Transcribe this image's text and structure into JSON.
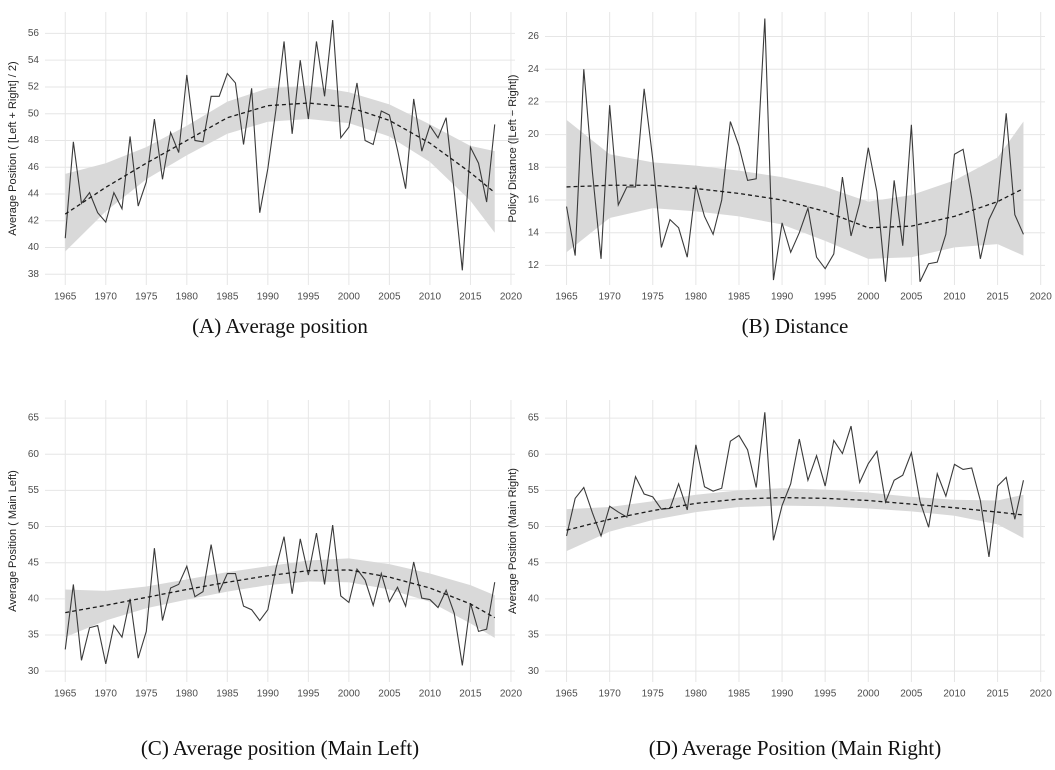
{
  "chart_data": [
    {
      "type": "line",
      "ylabel": "Average Position ( [Left + Right] / 2)",
      "caption": "(A) Average position",
      "x": [
        1965,
        1966,
        1967,
        1968,
        1969,
        1970,
        1971,
        1972,
        1973,
        1974,
        1975,
        1976,
        1977,
        1978,
        1979,
        1980,
        1981,
        1982,
        1983,
        1984,
        1985,
        1986,
        1987,
        1988,
        1989,
        1990,
        1991,
        1992,
        1993,
        1994,
        1995,
        1996,
        1997,
        1998,
        1999,
        2000,
        2001,
        2002,
        2003,
        2004,
        2005,
        2006,
        2007,
        2008,
        2009,
        2010,
        2011,
        2012,
        2013,
        2014,
        2015,
        2016,
        2017,
        2018
      ],
      "xlim": [
        1962.5,
        2020.5
      ],
      "xticks": [
        1965,
        1970,
        1975,
        1980,
        1985,
        1990,
        1995,
        2000,
        2005,
        2010,
        2015,
        2020
      ],
      "ylim": [
        37.2,
        57.6
      ],
      "yticks": [
        38,
        40,
        42,
        44,
        46,
        48,
        50,
        52,
        54,
        56
      ],
      "grid": true,
      "series": [
        {
          "color": "#3a3a3a",
          "values": [
            40.7,
            47.9,
            43.3,
            44.1,
            42.6,
            41.9,
            44.1,
            42.9,
            48.3,
            43.1,
            44.9,
            49.6,
            45.1,
            48.6,
            47.1,
            52.9,
            48.0,
            47.9,
            51.3,
            51.3,
            53.0,
            52.3,
            47.7,
            51.9,
            42.6,
            45.9,
            50.3,
            55.4,
            48.5,
            54.0,
            49.6,
            55.4,
            51.3,
            57.0,
            48.2,
            49.0,
            52.3,
            48.0,
            47.7,
            50.2,
            49.9,
            47.3,
            44.4,
            51.1,
            47.2,
            49.1,
            48.2,
            49.7,
            44.2,
            38.3,
            47.5,
            46.3,
            43.4,
            49.2
          ]
        }
      ],
      "smooth": {
        "x": [
          1965,
          1970,
          1975,
          1980,
          1985,
          1990,
          1995,
          2000,
          2005,
          2010,
          2015,
          2018
        ],
        "fit": [
          42.5,
          44.5,
          46.3,
          48.0,
          49.7,
          50.6,
          50.8,
          50.5,
          49.5,
          47.8,
          45.6,
          44.1
        ],
        "lower": [
          39.7,
          42.7,
          45.1,
          46.9,
          48.5,
          49.4,
          49.6,
          49.3,
          48.3,
          46.4,
          43.5,
          41.1
        ],
        "upper": [
          45.5,
          46.3,
          47.5,
          49.1,
          50.9,
          51.9,
          52.1,
          51.6,
          50.7,
          49.2,
          47.6,
          47.2
        ],
        "color": "#1a1a1a",
        "band_color": "#d9d9d9"
      }
    },
    {
      "type": "line",
      "ylabel": "Policy Distance (|Left − Right|)",
      "caption": "(B) Distance",
      "x": [
        1965,
        1966,
        1967,
        1968,
        1969,
        1970,
        1971,
        1972,
        1973,
        1974,
        1975,
        1976,
        1977,
        1978,
        1979,
        1980,
        1981,
        1982,
        1983,
        1984,
        1985,
        1986,
        1987,
        1988,
        1989,
        1990,
        1991,
        1992,
        1993,
        1994,
        1995,
        1996,
        1997,
        1998,
        1999,
        2000,
        2001,
        2002,
        2003,
        2004,
        2005,
        2006,
        2007,
        2008,
        2009,
        2010,
        2011,
        2012,
        2013,
        2014,
        2015,
        2016,
        2017,
        2018
      ],
      "xlim": [
        1962.5,
        2020.5
      ],
      "xticks": [
        1965,
        1970,
        1975,
        1980,
        1985,
        1990,
        1995,
        2000,
        2005,
        2010,
        2015,
        2020
      ],
      "ylim": [
        10.8,
        27.5
      ],
      "yticks": [
        12,
        14,
        16,
        18,
        20,
        22,
        24,
        26
      ],
      "grid": true,
      "series": [
        {
          "color": "#3a3a3a",
          "values": [
            15.6,
            12.6,
            24.0,
            17.7,
            12.4,
            21.8,
            15.7,
            16.8,
            16.8,
            22.8,
            18.5,
            13.1,
            14.8,
            14.3,
            12.5,
            16.9,
            15.0,
            13.9,
            16.0,
            20.8,
            19.3,
            17.2,
            17.3,
            27.1,
            11.1,
            14.6,
            12.8,
            14.0,
            15.5,
            12.5,
            11.8,
            12.7,
            17.4,
            13.8,
            15.8,
            19.2,
            16.5,
            11.0,
            17.2,
            13.2,
            20.6,
            11.0,
            12.1,
            12.2,
            13.9,
            18.8,
            19.1,
            16.1,
            12.4,
            14.8,
            15.9,
            21.3,
            15.1,
            13.9
          ]
        }
      ],
      "smooth": {
        "x": [
          1965,
          1970,
          1975,
          1980,
          1985,
          1990,
          1995,
          2000,
          2005,
          2010,
          2015,
          2018
        ],
        "fit": [
          16.8,
          16.9,
          16.9,
          16.7,
          16.4,
          16.0,
          15.3,
          14.3,
          14.4,
          15.0,
          15.9,
          16.7
        ],
        "lower": [
          12.8,
          14.9,
          15.5,
          15.3,
          15.0,
          14.5,
          13.5,
          12.4,
          12.5,
          13.1,
          13.3,
          12.6
        ],
        "upper": [
          20.9,
          18.8,
          18.3,
          18.1,
          17.8,
          17.4,
          16.8,
          15.9,
          16.3,
          17.2,
          18.6,
          20.8
        ],
        "color": "#1a1a1a",
        "band_color": "#d9d9d9"
      }
    },
    {
      "type": "line",
      "ylabel": "Average Position ( Main Left)",
      "caption": "(C) Average position (Main Left)",
      "x": [
        1965,
        1966,
        1967,
        1968,
        1969,
        1970,
        1971,
        1972,
        1973,
        1974,
        1975,
        1976,
        1977,
        1978,
        1979,
        1980,
        1981,
        1982,
        1983,
        1984,
        1985,
        1986,
        1987,
        1988,
        1989,
        1990,
        1991,
        1992,
        1993,
        1994,
        1995,
        1996,
        1997,
        1998,
        1999,
        2000,
        2001,
        2002,
        2003,
        2004,
        2005,
        2006,
        2007,
        2008,
        2009,
        2010,
        2011,
        2012,
        2013,
        2014,
        2015,
        2016,
        2017,
        2018
      ],
      "xlim": [
        1962.5,
        2020.5
      ],
      "xticks": [
        1965,
        1970,
        1975,
        1980,
        1985,
        1990,
        1995,
        2000,
        2005,
        2010,
        2015,
        2020
      ],
      "ylim": [
        28.5,
        67.5
      ],
      "yticks": [
        30,
        35,
        40,
        45,
        50,
        55,
        60,
        65
      ],
      "grid": true,
      "series": [
        {
          "color": "#3a3a3a",
          "values": [
            33.0,
            42.0,
            31.5,
            36.0,
            36.3,
            31.0,
            36.3,
            34.7,
            40.0,
            31.8,
            35.5,
            47.0,
            37.0,
            41.5,
            42.0,
            44.5,
            40.3,
            41.0,
            47.5,
            41.0,
            43.5,
            43.5,
            39.0,
            38.5,
            37.0,
            38.5,
            44.2,
            48.6,
            40.7,
            48.3,
            43.3,
            49.1,
            42.0,
            50.2,
            40.4,
            39.5,
            44.1,
            42.6,
            39.1,
            43.5,
            39.6,
            41.6,
            39.0,
            45.1,
            40.1,
            39.9,
            38.8,
            41.2,
            38.0,
            30.8,
            39.4,
            35.5,
            35.8,
            42.3
          ]
        }
      ],
      "smooth": {
        "x": [
          1965,
          1970,
          1975,
          1980,
          1985,
          1990,
          1995,
          2000,
          2005,
          2010,
          2015,
          2018
        ],
        "fit": [
          38.1,
          39.1,
          40.2,
          41.3,
          42.3,
          43.2,
          43.9,
          44.0,
          43.0,
          41.5,
          39.3,
          37.4
        ],
        "lower": [
          34.7,
          37.0,
          38.7,
          39.9,
          41.0,
          41.9,
          42.4,
          42.3,
          41.3,
          39.6,
          36.6,
          34.6
        ],
        "upper": [
          41.3,
          41.1,
          41.7,
          42.7,
          43.7,
          44.5,
          45.3,
          45.6,
          44.8,
          43.5,
          41.9,
          40.5
        ],
        "color": "#1a1a1a",
        "band_color": "#d9d9d9"
      }
    },
    {
      "type": "line",
      "ylabel": "Average Position (Main Right)",
      "caption": "(D) Average Position (Main Right)",
      "x": [
        1965,
        1966,
        1967,
        1968,
        1969,
        1970,
        1971,
        1972,
        1973,
        1974,
        1975,
        1976,
        1977,
        1978,
        1979,
        1980,
        1981,
        1982,
        1983,
        1984,
        1985,
        1986,
        1987,
        1988,
        1989,
        1990,
        1991,
        1992,
        1993,
        1994,
        1995,
        1996,
        1997,
        1998,
        1999,
        2000,
        2001,
        2002,
        2003,
        2004,
        2005,
        2006,
        2007,
        2008,
        2009,
        2010,
        2011,
        2012,
        2013,
        2014,
        2015,
        2016,
        2017,
        2018
      ],
      "xlim": [
        1962.5,
        2020.5
      ],
      "xticks": [
        1965,
        1970,
        1975,
        1980,
        1985,
        1990,
        1995,
        2000,
        2005,
        2010,
        2015,
        2020
      ],
      "ylim": [
        28.5,
        67.5
      ],
      "yticks": [
        30,
        35,
        40,
        45,
        50,
        55,
        60,
        65
      ],
      "grid": true,
      "series": [
        {
          "color": "#3a3a3a",
          "values": [
            48.7,
            53.9,
            55.4,
            51.9,
            48.7,
            52.8,
            52.0,
            51.3,
            56.9,
            54.5,
            54.1,
            52.4,
            52.5,
            55.9,
            52.3,
            61.3,
            55.5,
            54.9,
            55.3,
            61.8,
            62.6,
            60.6,
            55.4,
            65.8,
            48.1,
            52.9,
            55.9,
            62.1,
            56.4,
            59.8,
            55.6,
            61.9,
            60.1,
            63.9,
            56.1,
            58.7,
            60.4,
            53.4,
            56.4,
            57.1,
            60.2,
            53.5,
            49.9,
            57.3,
            54.2,
            58.6,
            57.9,
            58.1,
            53.6,
            45.8,
            55.6,
            56.8,
            51.0,
            56.4
          ]
        }
      ],
      "smooth": {
        "x": [
          1965,
          1970,
          1975,
          1980,
          1985,
          1990,
          1995,
          2000,
          2005,
          2010,
          2015,
          2018
        ],
        "fit": [
          49.5,
          51.0,
          52.2,
          53.2,
          53.8,
          54.0,
          53.9,
          53.6,
          53.1,
          52.6,
          52.0,
          51.6
        ],
        "lower": [
          46.6,
          49.3,
          50.9,
          52.0,
          52.7,
          52.9,
          52.8,
          52.5,
          52.1,
          51.5,
          50.3,
          48.4
        ],
        "upper": [
          52.4,
          52.7,
          53.5,
          54.4,
          55.0,
          55.3,
          55.1,
          54.7,
          54.1,
          53.7,
          53.6,
          54.4
        ],
        "color": "#1a1a1a",
        "band_color": "#d9d9d9"
      }
    }
  ]
}
